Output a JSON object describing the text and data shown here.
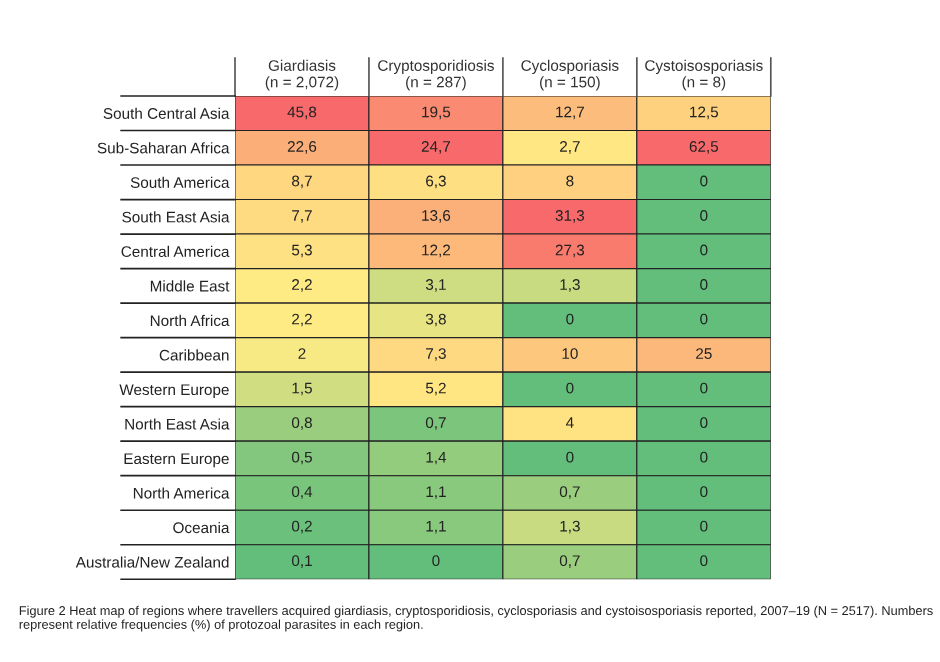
{
  "chart_data": {
    "type": "heatmap",
    "categories": [
      "Giardiasis\n(n = 2,072)",
      "Cryptosporidiosis\n(n = 287)",
      "Cyclosporiasis\n(n = 150)",
      "Cystoisosporiasis\n(n = 8)"
    ],
    "y_categories": [
      "South Central Asia",
      "Sub-Saharan Africa",
      "South America",
      "South East Asia",
      "Central America",
      "Middle East",
      "North Africa",
      "Caribbean",
      "Western Europe",
      "North East Asia",
      "Eastern Europe",
      "North America",
      "Oceania",
      "Australia/New Zealand"
    ],
    "cells": [
      [
        45.8,
        19.5,
        12.7,
        12.5
      ],
      [
        22.6,
        24.7,
        2.7,
        62.5
      ],
      [
        8.7,
        6.3,
        8,
        0
      ],
      [
        7.7,
        13.6,
        31.3,
        0
      ],
      [
        5.3,
        12.2,
        27.3,
        0
      ],
      [
        2.2,
        3.1,
        1.3,
        0
      ],
      [
        2.2,
        3.8,
        0,
        0
      ],
      [
        2,
        7.3,
        10,
        25
      ],
      [
        1.5,
        5.2,
        0,
        0
      ],
      [
        0.8,
        0.7,
        4,
        0
      ],
      [
        0.5,
        1.4,
        0,
        0
      ],
      [
        0.4,
        1.1,
        0.7,
        0
      ],
      [
        0.2,
        1.1,
        1.3,
        0
      ],
      [
        0.1,
        0,
        0.7,
        0
      ]
    ],
    "cell_labels": [
      [
        "45,8",
        "19,5",
        "12,7",
        "12,5"
      ],
      [
        "22,6",
        "24,7",
        "2,7",
        "62,5"
      ],
      [
        "8,7",
        "6,3",
        "8",
        "0"
      ],
      [
        "7,7",
        "13,6",
        "31,3",
        "0"
      ],
      [
        "5,3",
        "12,2",
        "27,3",
        "0"
      ],
      [
        "2,2",
        "3,1",
        "1,3",
        "0"
      ],
      [
        "2,2",
        "3,8",
        "0",
        "0"
      ],
      [
        "2",
        "7,3",
        "10",
        "25"
      ],
      [
        "1,5",
        "5,2",
        "0",
        "0"
      ],
      [
        "0,8",
        "0,7",
        "4",
        "0"
      ],
      [
        "0,5",
        "1,4",
        "0",
        "0"
      ],
      [
        "0,4",
        "1,1",
        "0,7",
        "0"
      ],
      [
        "0,2",
        "1,1",
        "1,3",
        "0"
      ],
      [
        "0,1",
        "0",
        "0,7",
        "0"
      ]
    ],
    "colors": [
      "#63be7b",
      "#ffeb84",
      "#f8696b"
    ],
    "annotations": [
      "Figure 2 Heat map of regions where travellers acquired giardiasis, cryptosporidiosis, cyclosporiasis and cystoisosporiasis reported, 2007–19 (N = 2517). Numbers represent relative frequencies (%) of protozoal parasites in each region."
    ]
  }
}
